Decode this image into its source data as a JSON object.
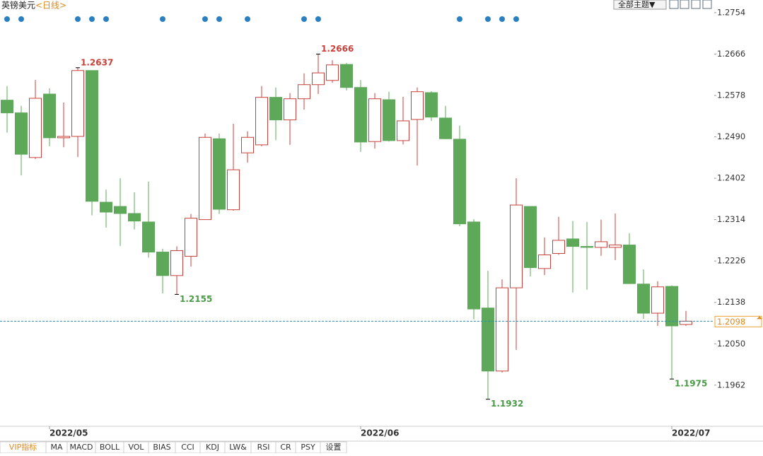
{
  "header": {
    "title": "英镑美元",
    "subtitle": "<日线>",
    "theme_button": "全部主题▼"
  },
  "toolbar": {
    "tabs": [
      "VIP指标",
      "MA",
      "MACD",
      "BOLL",
      "VOL",
      "BIAS",
      "CCI",
      "KDJ",
      "LW&",
      "RSI",
      "CR",
      "PSY",
      "设置"
    ]
  },
  "chart_data": {
    "type": "candlestick",
    "categories": [
      null,
      null,
      null,
      "2022/05",
      null,
      null,
      null,
      null,
      null,
      null,
      null,
      null,
      null,
      null,
      null,
      null,
      null,
      null,
      null,
      null,
      null,
      null,
      null,
      null,
      null,
      "2022/06",
      null,
      null,
      null,
      null,
      null,
      null,
      null,
      null,
      null,
      null,
      null,
      null,
      null,
      null,
      null,
      null,
      null,
      null,
      null,
      null,
      null,
      "2022/07",
      null
    ],
    "open": [
      1.2568,
      1.2541,
      1.2446,
      1.2581,
      1.2488,
      1.2491,
      1.2631,
      1.2351,
      1.2342,
      1.2327,
      1.2309,
      1.2245,
      1.2195,
      1.2236,
      1.2314,
      1.2486,
      1.2335,
      1.2456,
      1.2473,
      1.2574,
      1.2526,
      1.2571,
      1.2601,
      1.261,
      1.2644,
      1.2595,
      1.248,
      1.2569,
      1.2482,
      1.2527,
      1.2584,
      1.253,
      1.2485,
      1.2309,
      1.2126,
      1.1992,
      1.2169,
      1.2342,
      1.221,
      1.2242,
      1.2273,
      1.2257,
      1.2255,
      1.2255,
      1.226,
      1.2177,
      1.2115,
      1.2172,
      1.2091
    ],
    "high": [
      1.2598,
      1.2556,
      1.2611,
      1.2593,
      1.2563,
      1.2637,
      1.2631,
      1.2378,
      1.2402,
      1.2372,
      1.2395,
      1.2252,
      1.2257,
      1.2326,
      1.2497,
      1.2497,
      1.2518,
      1.2502,
      1.2598,
      1.2595,
      1.2583,
      1.2625,
      1.2666,
      1.2653,
      1.2647,
      1.2611,
      1.2583,
      1.2586,
      1.2575,
      1.2595,
      1.2587,
      1.2556,
      1.2514,
      1.2315,
      1.2205,
      1.2187,
      1.2402,
      1.2342,
      1.2276,
      1.232,
      1.2311,
      1.2309,
      1.2314,
      1.2327,
      1.2285,
      1.2208,
      1.2183,
      1.2174,
      1.212
    ],
    "low": [
      1.2499,
      1.2408,
      1.2443,
      1.247,
      1.2468,
      1.2447,
      1.2323,
      1.2297,
      1.2258,
      1.2293,
      1.2233,
      1.2157,
      1.2155,
      1.2214,
      1.2314,
      1.2326,
      1.2333,
      1.2435,
      1.247,
      1.2483,
      1.2473,
      1.2548,
      1.2581,
      1.2605,
      1.2589,
      1.2458,
      1.2465,
      1.248,
      1.2474,
      1.2429,
      1.2524,
      1.2485,
      1.23,
      1.2102,
      1.1932,
      1.1989,
      1.2037,
      1.2193,
      1.2196,
      1.2239,
      1.2159,
      1.2165,
      1.2237,
      1.2228,
      1.2177,
      1.2103,
      1.2088,
      1.1975,
      1.2088
    ],
    "close": [
      1.2541,
      1.2453,
      1.2572,
      1.2488,
      1.2491,
      1.2631,
      1.2353,
      1.233,
      1.2327,
      1.2311,
      1.2245,
      1.2195,
      1.2248,
      1.2317,
      1.2489,
      1.2336,
      1.242,
      1.2489,
      1.2574,
      1.2526,
      1.2571,
      1.2601,
      1.2626,
      1.2643,
      1.2595,
      1.2479,
      1.2571,
      1.2482,
      1.2524,
      1.2586,
      1.2532,
      1.2486,
      1.2305,
      1.2124,
      1.1992,
      1.2169,
      1.2345,
      1.2212,
      1.2239,
      1.227,
      1.2257,
      1.2255,
      1.2267,
      1.226,
      1.2178,
      1.2115,
      1.2171,
      1.2088,
      1.2098
    ],
    "up_color": "#c9403a",
    "down_color": "#5ea85a",
    "ylim": [
      1.1879,
      1.2781
    ],
    "yticks": [
      1.2754,
      1.2666,
      1.2578,
      {
        "value": 1.249,
        "label": "1.2490"
      },
      1.2402,
      1.2314,
      1.2226,
      1.2138,
      {
        "value": 1.205,
        "label": "1.2050"
      },
      1.1962
    ]
  }
}
